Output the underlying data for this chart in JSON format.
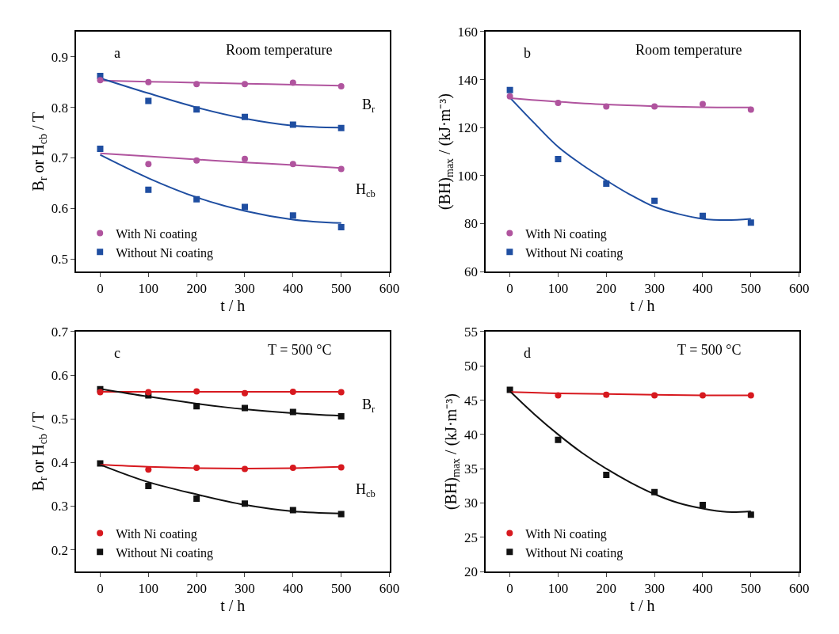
{
  "chart_data": [
    {
      "type": "scatter",
      "xlabel": "t / h",
      "ylabel": "B$_{r}$ or H$_{cb}$ / T",
      "xlim": [
        -50,
        600
      ],
      "xticks": [
        0,
        100,
        200,
        300,
        400,
        500,
        600
      ],
      "ylim": [
        0.475,
        0.95
      ],
      "yticks": [
        0.5,
        0.6,
        0.7,
        0.8,
        0.9
      ],
      "grid": false,
      "legend": "bottom left",
      "x": [
        0,
        100,
        200,
        300,
        400,
        500
      ],
      "annotations": [
        "a",
        "Room temperature",
        "B$_{r}$",
        "H$_{cb}$"
      ],
      "series": [
        {
          "name": "With Ni coating",
          "marker": "circle",
          "color": "#b0549e",
          "values": [
            0.854,
            0.85,
            0.846,
            0.846,
            0.849,
            0.842
          ]
        },
        {
          "name": "Without Ni coating",
          "marker": "square",
          "color": "#1f4ea1",
          "values": [
            0.862,
            0.813,
            0.796,
            0.781,
            0.766,
            0.759
          ]
        },
        {
          "marker": "circle",
          "color": "#b0549e",
          "values": [
            null,
            0.688,
            0.695,
            0.698,
            0.688,
            0.678
          ]
        },
        {
          "marker": "square",
          "color": "#1f4ea1",
          "values": [
            0.718,
            0.637,
            0.618,
            0.603,
            0.586,
            0.563
          ]
        },
        {
          "type": "line",
          "marker": "none",
          "line_style": "solid",
          "color": "#b0549e",
          "x": [
            0,
            100,
            200,
            300,
            400,
            500
          ],
          "values": [
            0.853,
            0.851,
            0.849,
            0.847,
            0.845,
            0.843
          ]
        },
        {
          "type": "line",
          "marker": "none",
          "line_style": "solid",
          "color": "#1f4ea1",
          "x": [
            0,
            100,
            200,
            300,
            400,
            500
          ],
          "values": [
            0.858,
            0.828,
            0.8,
            0.778,
            0.764,
            0.76
          ]
        },
        {
          "type": "line",
          "marker": "none",
          "line_style": "solid",
          "color": "#b0549e",
          "x": [
            0,
            100,
            200,
            300,
            400,
            500
          ],
          "values": [
            0.709,
            0.703,
            0.697,
            0.691,
            0.686,
            0.68
          ]
        },
        {
          "type": "line",
          "marker": "none",
          "line_style": "solid",
          "color": "#1f4ea1",
          "x": [
            0,
            100,
            200,
            300,
            400,
            500
          ],
          "values": [
            0.706,
            0.66,
            0.622,
            0.595,
            0.578,
            0.571
          ]
        }
      ]
    },
    {
      "type": "scatter",
      "xlabel": "t / h",
      "ylabel": "(BH)$_{max}$ / (kJ·m⁻³)",
      "xlim": [
        -50,
        600
      ],
      "xticks": [
        0,
        100,
        200,
        300,
        400,
        500,
        600
      ],
      "ylim": [
        60,
        160
      ],
      "yticks": [
        60,
        80,
        100,
        120,
        140,
        160
      ],
      "grid": false,
      "legend": "bottom left",
      "x": [
        0,
        100,
        200,
        300,
        400,
        500
      ],
      "annotations": [
        "b",
        "Room temperature"
      ],
      "series": [
        {
          "name": "With Ni coating",
          "marker": "circle",
          "color": "#b0549e",
          "values": [
            133,
            130.3,
            128.8,
            128.8,
            129.8,
            127.5
          ]
        },
        {
          "name": "Without Ni coating",
          "marker": "square",
          "color": "#1f4ea1",
          "values": [
            135.7,
            106.9,
            96.7,
            89.5,
            83.2,
            80.4
          ]
        },
        {
          "type": "line",
          "marker": "none",
          "line_style": "solid",
          "color": "#b0549e",
          "x": [
            0,
            100,
            200,
            300,
            400,
            500
          ],
          "values": [
            132.3,
            130.8,
            129.6,
            128.9,
            128.5,
            128.4
          ]
        },
        {
          "type": "line",
          "marker": "none",
          "line_style": "solid",
          "color": "#1f4ea1",
          "x": [
            0,
            50,
            100,
            150,
            200,
            250,
            300,
            350,
            400,
            450,
            500
          ],
          "values": [
            132.5,
            122,
            112,
            104.5,
            98,
            92,
            87,
            84,
            82,
            81.5,
            82
          ]
        }
      ]
    },
    {
      "type": "scatter",
      "xlabel": "t / h",
      "ylabel": "B$_{r}$ or H$_{cb}$ / T",
      "xlim": [
        -50,
        600
      ],
      "xticks": [
        0,
        100,
        200,
        300,
        400,
        500,
        600
      ],
      "ylim": [
        0.15,
        0.7
      ],
      "yticks": [
        0.2,
        0.3,
        0.4,
        0.5,
        0.6,
        0.7
      ],
      "grid": false,
      "legend": "bottom left",
      "x": [
        0,
        100,
        200,
        300,
        400,
        500
      ],
      "annotations": [
        "c",
        "T = 500 °C",
        "B$_{r}$",
        "H$_{cb}$"
      ],
      "series": [
        {
          "name": "With Ni coating",
          "marker": "circle",
          "color": "#d7191f",
          "values": [
            0.561,
            0.561,
            0.563,
            0.559,
            0.562,
            0.561
          ]
        },
        {
          "name": "Without Ni coating",
          "marker": "square",
          "color": "#111111",
          "values": [
            0.568,
            0.554,
            0.529,
            0.525,
            0.516,
            0.506
          ]
        },
        {
          "marker": "circle",
          "color": "#d7191f",
          "values": [
            null,
            0.384,
            0.388,
            0.385,
            0.388,
            0.389
          ]
        },
        {
          "marker": "square",
          "color": "#111111",
          "values": [
            0.398,
            0.346,
            0.317,
            0.306,
            0.291,
            0.282
          ]
        },
        {
          "type": "line",
          "marker": "none",
          "line_style": "solid",
          "color": "#d7191f",
          "x": [
            0,
            100,
            200,
            300,
            400,
            500
          ],
          "values": [
            0.562,
            0.562,
            0.562,
            0.562,
            0.562,
            0.562
          ]
        },
        {
          "type": "line",
          "marker": "none",
          "line_style": "solid",
          "color": "#111111",
          "x": [
            0,
            100,
            200,
            300,
            400,
            500
          ],
          "values": [
            0.569,
            0.551,
            0.535,
            0.522,
            0.513,
            0.507
          ]
        },
        {
          "type": "line",
          "marker": "none",
          "line_style": "solid",
          "color": "#d7191f",
          "x": [
            0,
            100,
            200,
            300,
            400,
            500
          ],
          "values": [
            0.395,
            0.39,
            0.387,
            0.386,
            0.387,
            0.39
          ]
        },
        {
          "type": "line",
          "marker": "none",
          "line_style": "solid",
          "color": "#111111",
          "x": [
            0,
            100,
            200,
            300,
            400,
            500
          ],
          "values": [
            0.395,
            0.355,
            0.327,
            0.303,
            0.288,
            0.283
          ]
        }
      ]
    },
    {
      "type": "scatter",
      "xlabel": "t / h",
      "ylabel": "(BH)$_{max}$ / (kJ·m⁻³)",
      "xlim": [
        -50,
        600
      ],
      "xticks": [
        0,
        100,
        200,
        300,
        400,
        500,
        600
      ],
      "ylim": [
        20,
        55
      ],
      "yticks": [
        20,
        25,
        30,
        35,
        40,
        45,
        50,
        55
      ],
      "grid": false,
      "legend": "bottom left",
      "x": [
        0,
        100,
        200,
        300,
        400,
        500
      ],
      "annotations": [
        "d",
        "T = 500 °C"
      ],
      "series": [
        {
          "name": "With Ni coating",
          "marker": "circle",
          "color": "#d7191f",
          "values": [
            null,
            45.7,
            45.8,
            45.7,
            45.7,
            45.7
          ]
        },
        {
          "name": "Without Ni coating",
          "marker": "square",
          "color": "#111111",
          "values": [
            46.5,
            39.2,
            34.1,
            31.6,
            29.7,
            28.3
          ]
        },
        {
          "type": "line",
          "marker": "none",
          "line_style": "solid",
          "color": "#d7191f",
          "x": [
            0,
            100,
            200,
            300,
            400,
            500
          ],
          "values": [
            46.2,
            46,
            45.9,
            45.8,
            45.7,
            45.7
          ]
        },
        {
          "type": "line",
          "marker": "none",
          "line_style": "solid",
          "color": "#111111",
          "x": [
            0,
            50,
            100,
            150,
            200,
            250,
            300,
            350,
            400,
            450,
            500
          ],
          "values": [
            46.3,
            43,
            40,
            37.3,
            35,
            33,
            31.3,
            30,
            29.2,
            28.7,
            28.8
          ]
        }
      ]
    }
  ]
}
